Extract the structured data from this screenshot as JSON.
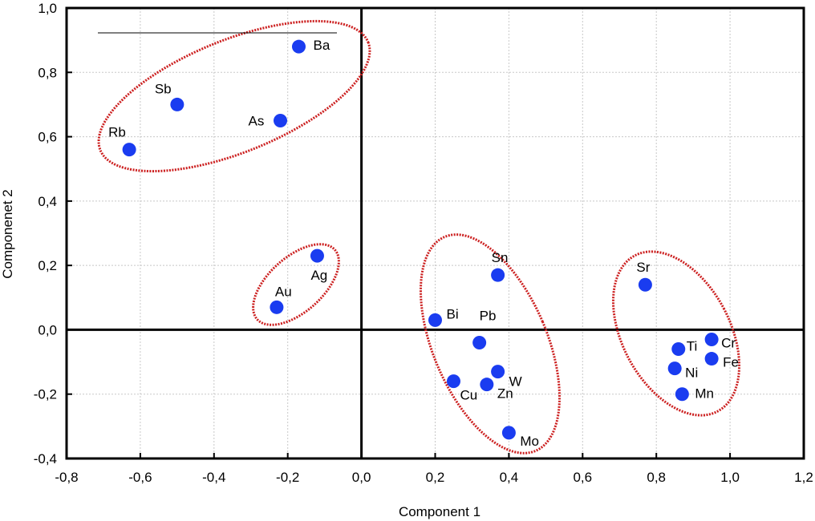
{
  "chart_data": {
    "type": "scatter",
    "title": "",
    "xlabel": "Component 1",
    "ylabel": "Componenet 2",
    "xlim": [
      -0.8,
      1.2
    ],
    "ylim": [
      -0.4,
      1.0
    ],
    "xticks": [
      "-0,8",
      "-0,6",
      "-0,4",
      "-0,2",
      "0,0",
      "0,2",
      "0,4",
      "0,6",
      "0,8",
      "1,0",
      "1,2"
    ],
    "yticks": [
      "-0,4",
      "-0,2",
      "0,0",
      "0,2",
      "0,4",
      "0,6",
      "0,8",
      "1,0"
    ],
    "xtick_values": [
      -0.8,
      -0.6,
      -0.4,
      -0.2,
      0.0,
      0.2,
      0.4,
      0.6,
      0.8,
      1.0,
      1.2
    ],
    "ytick_values": [
      -0.4,
      -0.2,
      0.0,
      0.2,
      0.4,
      0.6,
      0.8,
      1.0
    ],
    "grid": true,
    "marker_color": "#1a3cf0",
    "cluster_color": "#cc2020",
    "points": [
      {
        "label": "Ba",
        "x": -0.17,
        "y": 0.88
      },
      {
        "label": "Sb",
        "x": -0.5,
        "y": 0.7
      },
      {
        "label": "As",
        "x": -0.22,
        "y": 0.65
      },
      {
        "label": "Rb",
        "x": -0.63,
        "y": 0.56
      },
      {
        "label": "Ag",
        "x": -0.12,
        "y": 0.23
      },
      {
        "label": "Au",
        "x": -0.23,
        "y": 0.07
      },
      {
        "label": "Sn",
        "x": 0.37,
        "y": 0.17
      },
      {
        "label": "Bi",
        "x": 0.2,
        "y": 0.03
      },
      {
        "label": "Pb",
        "x": 0.32,
        "y": -0.04
      },
      {
        "label": "W",
        "x": 0.37,
        "y": -0.13
      },
      {
        "label": "Cu",
        "x": 0.25,
        "y": -0.16
      },
      {
        "label": "Zn",
        "x": 0.34,
        "y": -0.17
      },
      {
        "label": "Mo",
        "x": 0.4,
        "y": -0.32
      },
      {
        "label": "Sr",
        "x": 0.77,
        "y": 0.14
      },
      {
        "label": "Ti",
        "x": 0.86,
        "y": -0.06
      },
      {
        "label": "Cr",
        "x": 0.95,
        "y": -0.03
      },
      {
        "label": "Fe",
        "x": 0.95,
        "y": -0.09
      },
      {
        "label": "Ni",
        "x": 0.85,
        "y": -0.12
      },
      {
        "label": "Mn",
        "x": 0.87,
        "y": -0.2
      }
    ],
    "clusters": [
      {
        "name": "cluster-ba-sb-as-rb",
        "members": [
          "Ba",
          "Sb",
          "As",
          "Rb"
        ]
      },
      {
        "name": "cluster-ag-au",
        "members": [
          "Ag",
          "Au"
        ]
      },
      {
        "name": "cluster-sn-bi-pb-w-cu-zn-mo",
        "members": [
          "Sn",
          "Bi",
          "Pb",
          "W",
          "Cu",
          "Zn",
          "Mo"
        ]
      },
      {
        "name": "cluster-sr-ti-cr-fe-ni-mn",
        "members": [
          "Sr",
          "Ti",
          "Cr",
          "Fe",
          "Ni",
          "Mn"
        ]
      }
    ],
    "reference_lines": {
      "x": 0.0,
      "y": 0.0
    }
  }
}
